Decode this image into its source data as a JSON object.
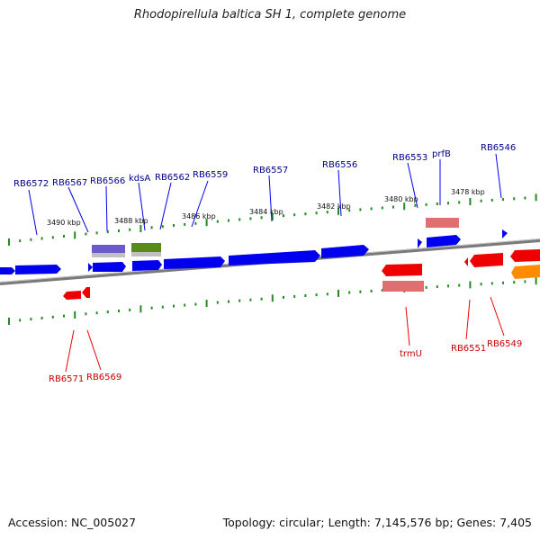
{
  "title": "Rhodopirellula baltica SH 1, complete genome",
  "footer": {
    "accession": "Accession: NC_005027",
    "summary": "Topology: circular; Length: 7,145,576 bp; Genes: 7,405"
  },
  "colors": {
    "forward_gene": "#0000ee",
    "forward_label": "#00008b",
    "reverse_gene": "#ee0000",
    "reverse_label": "#c80000",
    "rna_forward": "#6a5acd",
    "rna_reverse": "#e07070",
    "pseudo_gene": "#5a8a1a",
    "orange_gene": "#ff8c00",
    "tick": "#228b22",
    "backbone": "#7a7a7a"
  },
  "ticks": {
    "upper": [
      "3490 kbp",
      "3488 kbp",
      "3486 kbp",
      "3484 kbp",
      "3482 kbp",
      "3480 kbp",
      "3478 kbp"
    ]
  },
  "labels": {
    "forward": [
      "RB6572",
      "RB6567",
      "RB6566",
      "kdsA",
      "RB6562",
      "RB6559",
      "RB6557",
      "RB6556",
      "RB6553",
      "prfB",
      "RB6546"
    ],
    "reverse": [
      "RB6571",
      "RB6569",
      "trmU",
      "RB6551",
      "RB6549"
    ]
  }
}
